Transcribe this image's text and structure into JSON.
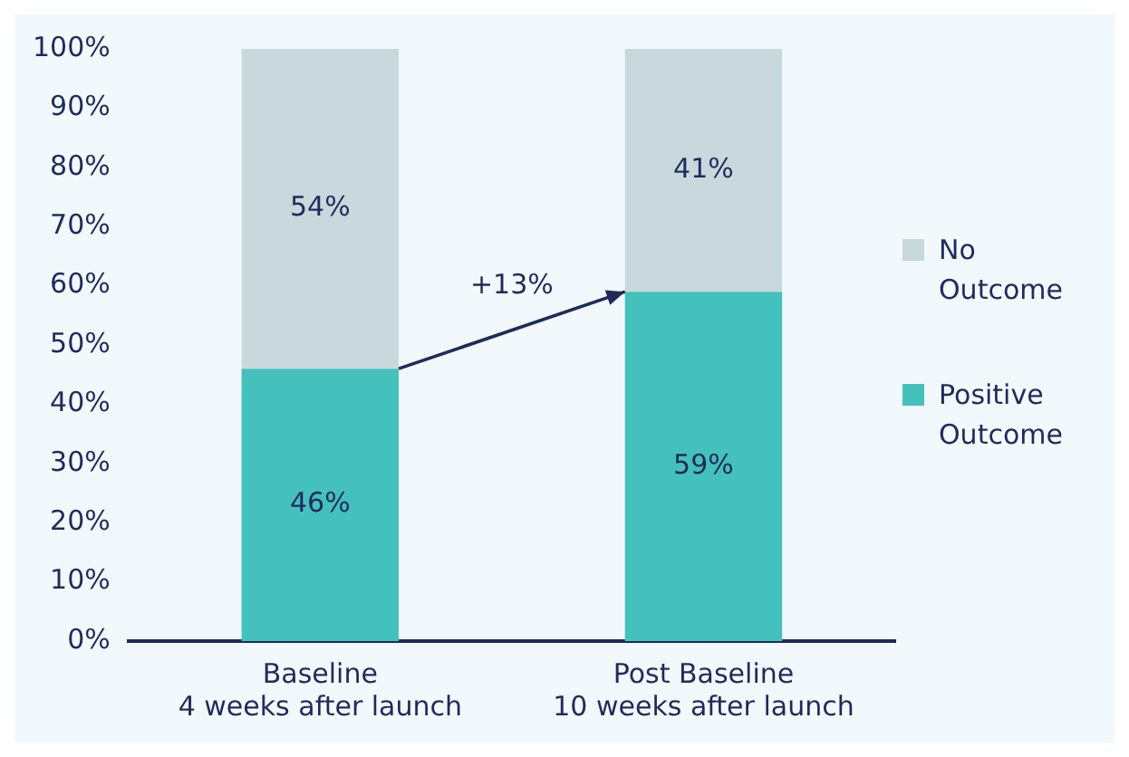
{
  "chart_data": {
    "type": "bar",
    "stacked": true,
    "categories": [
      "Baseline\n4 weeks after launch",
      "Post Baseline\n10 weeks after launch"
    ],
    "series": [
      {
        "name": "Positive Outcome",
        "color": "#45c1bd",
        "values": [
          46,
          59
        ]
      },
      {
        "name": "No Outcome",
        "color": "#c8d8dd",
        "values": [
          54,
          41
        ]
      }
    ],
    "ylim": [
      0,
      100
    ],
    "yticks": [
      {
        "value": 0,
        "label": "0%"
      },
      {
        "value": 10,
        "label": "10%"
      },
      {
        "value": 20,
        "label": "20%"
      },
      {
        "value": 30,
        "label": "30%"
      },
      {
        "value": 40,
        "label": "40%"
      },
      {
        "value": 50,
        "label": "50%"
      },
      {
        "value": 60,
        "label": "60%"
      },
      {
        "value": 70,
        "label": "70%"
      },
      {
        "value": 80,
        "label": "80%"
      },
      {
        "value": 90,
        "label": "90%"
      },
      {
        "value": 100,
        "label": "100%"
      }
    ],
    "value_labels": [
      [
        "46%",
        "59%"
      ],
      [
        "54%",
        "41%"
      ]
    ],
    "annotations": [
      "+13%"
    ],
    "grid": false,
    "legend": "right"
  }
}
